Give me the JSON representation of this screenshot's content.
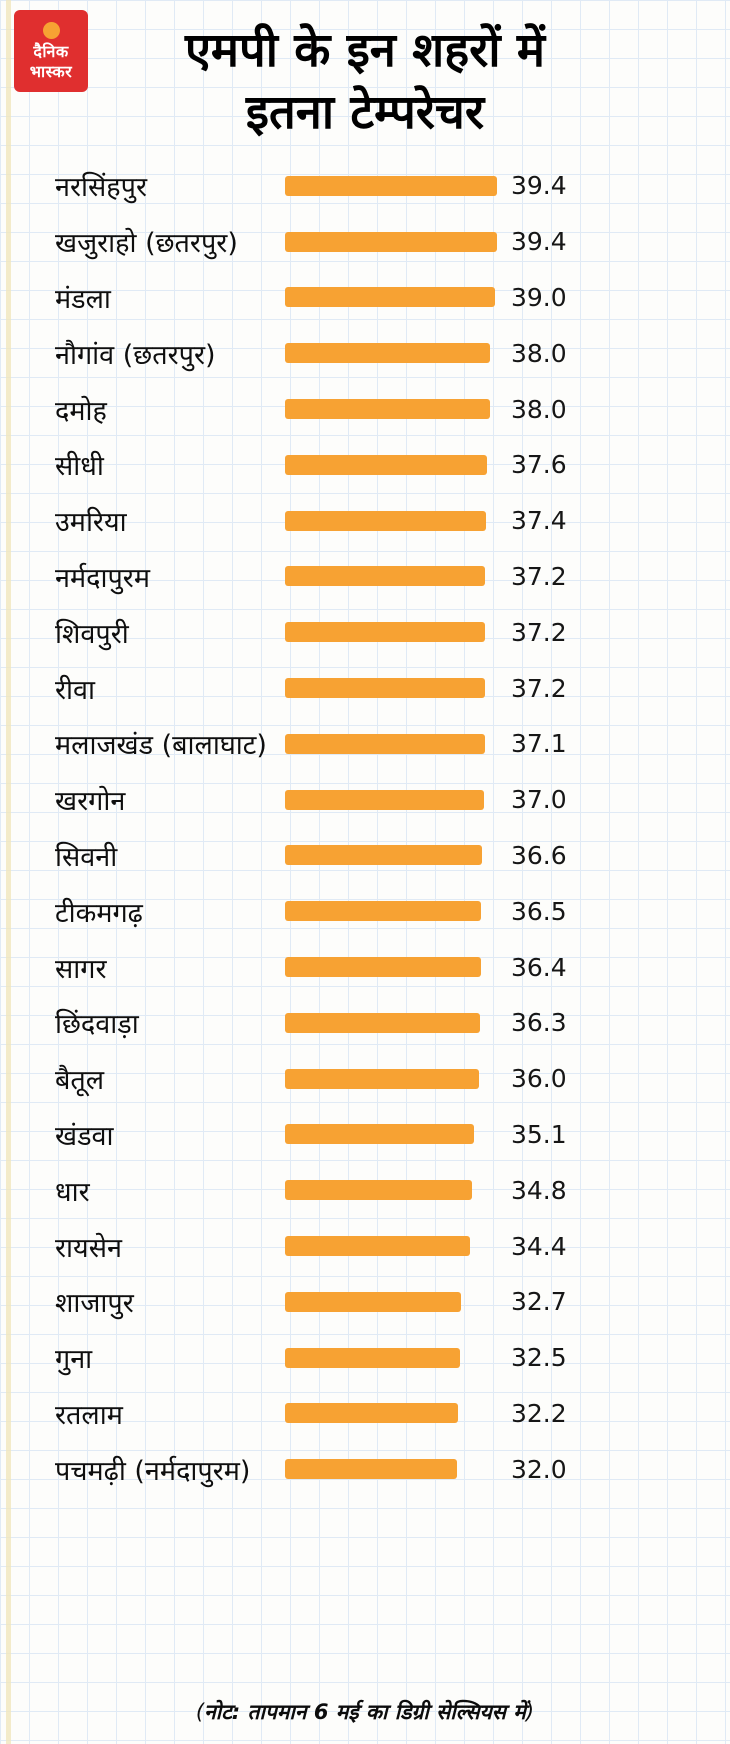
{
  "brand": {
    "logo_line1": "दैनिक",
    "logo_line2": "भास्कर",
    "logo_bg_color": "#e02f2f",
    "sun_color": "#f7a233"
  },
  "header": {
    "title_line1": "एमपी के इन शहरों में",
    "title_line2": "इतना टेम्परेचर"
  },
  "footer": {
    "open_paren": "(",
    "note_prefix": "नोट:",
    "note_rest": " तापमान 6 मई का डिग्री सेल्सियस में",
    "close_paren": ")"
  },
  "colors": {
    "bar": "#f7a233",
    "grid": "#e0eaf5",
    "background": "#fdfdfb"
  },
  "chart_data": {
    "type": "bar",
    "orientation": "horizontal",
    "title": "एमपी के इन शहरों में इतना टेम्परेचर",
    "unit": "degree celsius",
    "note": "(नोट: तापमान 6 मई का डिग्री सेल्सियस में)",
    "xlim": [
      0,
      39.4
    ],
    "grid": true,
    "bar_color": "#f7a233",
    "categories": [
      "नरसिंहपुर",
      "खजुराहो (छतरपुर)",
      "मंडला",
      "नौगांव (छतरपुर)",
      "दमोह",
      "सीधी",
      "उमरिया",
      "नर्मदापुरम",
      "शिवपुरी",
      "रीवा",
      "मलाजखंड (बालाघाट)",
      "खरगोन",
      "सिवनी",
      "टीकमगढ़",
      "सागर",
      "छिंदवाड़ा",
      "बैतूल",
      "खंडवा",
      "धार",
      "रायसेन",
      "शाजापुर",
      "गुना",
      "रतलाम",
      "पचमढ़ी (नर्मदापुरम)"
    ],
    "values": [
      39.4,
      39.4,
      39.0,
      38.0,
      38.0,
      37.6,
      37.4,
      37.2,
      37.2,
      37.2,
      37.1,
      37.0,
      36.6,
      36.5,
      36.4,
      36.3,
      36.0,
      35.1,
      34.8,
      34.4,
      32.7,
      32.5,
      32.2,
      32.0
    ]
  }
}
